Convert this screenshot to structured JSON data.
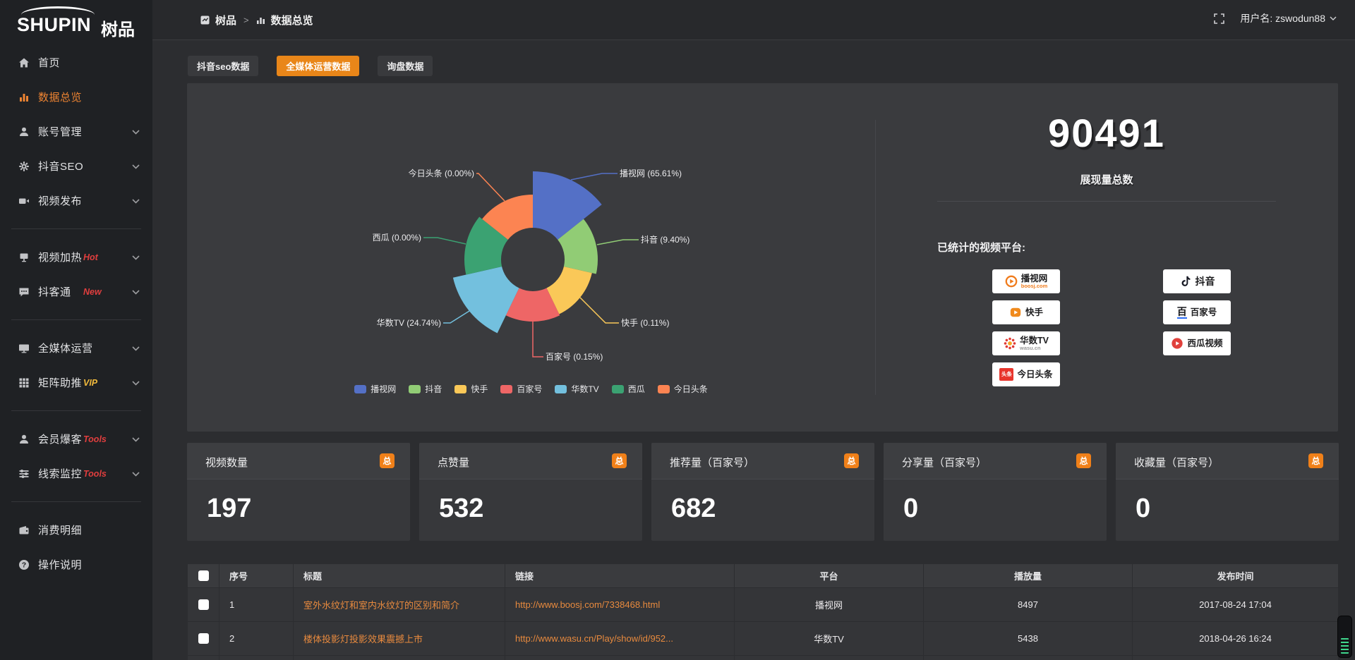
{
  "brand": {
    "name_en": "SHUPIN",
    "name_cn": "树品"
  },
  "topbar": {
    "breadcrumb_root": "树品",
    "breadcrumb_current": "数据总览",
    "username": "用户名: zswodun88"
  },
  "sidebar": {
    "items": [
      {
        "label": "首页"
      },
      {
        "label": "数据总览"
      },
      {
        "label": "账号管理"
      },
      {
        "label": "抖音SEO"
      },
      {
        "label": "视频发布"
      },
      {
        "label": "视频加热",
        "badge": "Hot"
      },
      {
        "label": "抖客通",
        "badge": "New"
      },
      {
        "label": "全媒体运营"
      },
      {
        "label": "矩阵助推",
        "badge": "VIP"
      },
      {
        "label": "会员爆客",
        "badge": "Tools"
      },
      {
        "label": "线索监控",
        "badge": "Tools"
      },
      {
        "label": "消费明细"
      },
      {
        "label": "操作说明"
      }
    ]
  },
  "tabs": [
    {
      "label": "抖音seo数据"
    },
    {
      "label": "全媒体运营数据"
    },
    {
      "label": "询盘数据"
    }
  ],
  "chart_data": {
    "type": "pie",
    "variant": "nightingale-rose",
    "legend_position": "bottom",
    "slices": [
      {
        "name": "播视网",
        "pct": 65.61,
        "color": "#5470c6",
        "label": "播视网 (65.61%)"
      },
      {
        "name": "抖音",
        "pct": 9.4,
        "color": "#91cc75",
        "label": "抖音 (9.40%)"
      },
      {
        "name": "快手",
        "pct": 0.11,
        "color": "#fac858",
        "label": "快手 (0.11%)"
      },
      {
        "name": "百家号",
        "pct": 0.15,
        "color": "#ee6666",
        "label": "百家号 (0.15%)"
      },
      {
        "name": "华数TV",
        "pct": 24.74,
        "color": "#73c0de",
        "label": "华数TV (24.74%)"
      },
      {
        "name": "西瓜",
        "pct": 0.0,
        "color": "#3ba272",
        "label": "西瓜 (0.00%)"
      },
      {
        "name": "今日头条",
        "pct": 0.0,
        "color": "#fc8452",
        "label": "今日头条 (0.00%)"
      }
    ]
  },
  "summary": {
    "total_value": "90491",
    "total_label": "展现量总数",
    "platforms_title": "已统计的视频平台:",
    "badges": [
      {
        "name": "播视网",
        "sub": "boosj.com"
      },
      {
        "name": "快手"
      },
      {
        "name": "华数TV",
        "sub": "wasu.cn"
      },
      {
        "name": "今日头条"
      },
      {
        "name": "抖音"
      },
      {
        "name": "百家号"
      },
      {
        "name": "西瓜视频"
      }
    ]
  },
  "stat_cards": [
    {
      "label": "视频数量",
      "badge": "总",
      "value": "197"
    },
    {
      "label": "点赞量",
      "badge": "总",
      "value": "532"
    },
    {
      "label": "推荐量（百家号）",
      "badge": "总",
      "value": "682"
    },
    {
      "label": "分享量（百家号）",
      "badge": "总",
      "value": "0"
    },
    {
      "label": "收藏量（百家号）",
      "badge": "总",
      "value": "0"
    }
  ],
  "table": {
    "headers": [
      "序号",
      "标题",
      "链接",
      "平台",
      "播放量",
      "发布时间"
    ],
    "rows": [
      {
        "num": "1",
        "title": "室外水纹灯和室内水纹灯的区别和简介",
        "link": "http://www.boosj.com/7338468.html",
        "platform": "播视网",
        "plays": "8497",
        "time": "2017-08-24 17:04"
      },
      {
        "num": "2",
        "title": "楼体投影灯投影效果震撼上市",
        "link": "http://www.wasu.cn/Play/show/id/952...",
        "platform": "华数TV",
        "plays": "5438",
        "time": "2018-04-26 16:24"
      }
    ]
  }
}
